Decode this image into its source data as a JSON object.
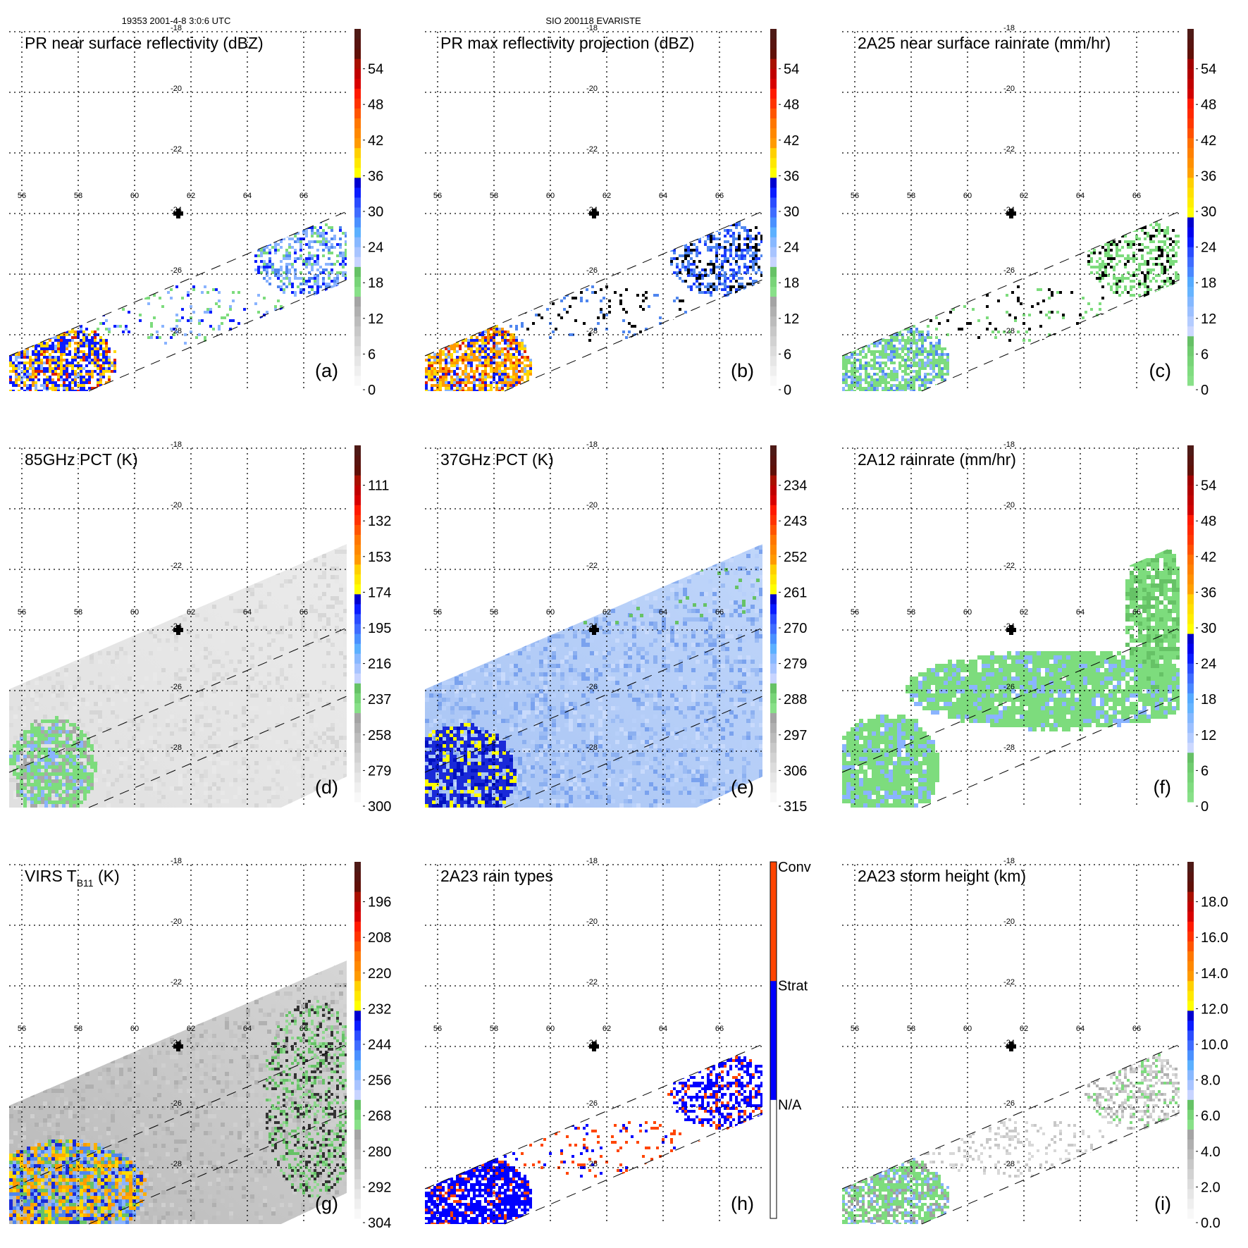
{
  "header": {
    "orbit_time": "19353 2001-4-8 3:0:6 UTC",
    "storm_id": "SIO 200118 EVARISTE"
  },
  "axes": {
    "lon_labels": [
      "56",
      "58",
      "60",
      "62",
      "64",
      "66"
    ],
    "lat_labels": [
      "-18",
      "-20",
      "-22",
      "-24",
      "-26",
      "-28"
    ]
  },
  "colormaps": {
    "reflectivity": [
      "#f8f8f8",
      "#efefef",
      "#e6e6e6",
      "#dcdcdc",
      "#d2d2d2",
      "#c8c8c8",
      "#bcbcbc",
      "#b0b0b0",
      "#a4a4a4",
      "#88e088",
      "#78d478",
      "#66c266",
      "#c8d4ff",
      "#a8c4ff",
      "#88b8ff",
      "#5cb0ff",
      "#4a90ff",
      "#3f6cff",
      "#2a4cff",
      "#0a1cff",
      "#0000d0",
      "#ffff00",
      "#ffe800",
      "#ffd000",
      "#ff9a00",
      "#ff8800",
      "#ff7700",
      "#ff5500",
      "#ff3300",
      "#ff1a00",
      "#d80000",
      "#c00000",
      "#a81000",
      "#601008",
      "#581410",
      "#4e1a16"
    ],
    "rainrate": [
      "#88e088",
      "#80dc80",
      "#78d478",
      "#70cc70",
      "#66c066",
      "#ccd8ff",
      "#b4ccff",
      "#9cc0ff",
      "#84b8ff",
      "#66b4ff",
      "#55aaff",
      "#4a88ff",
      "#3f6cff",
      "#2a4cff",
      "#0a1cff",
      "#0000ee",
      "#0000cc",
      "#ffff00",
      "#ffee00",
      "#ffe000",
      "#ffd000",
      "#ffa000",
      "#ff9000",
      "#ff8000",
      "#ff7000",
      "#ff5000",
      "#ff3800",
      "#ff2800",
      "#ff1a00",
      "#d00000",
      "#c00000",
      "#b00000",
      "#a00000",
      "#601008",
      "#581410",
      "#4e1a16"
    ],
    "raintype": [
      "#ffffff",
      "#0000ff",
      "#ff4500"
    ]
  },
  "panels": [
    {
      "id": "a",
      "title": "PR near surface reflectivity (dBZ)",
      "label": "(a)",
      "colormap": "reflectivity",
      "swath": "pr",
      "colorbar_labels": [
        "54",
        "48",
        "42",
        "36",
        "30",
        "24",
        "18",
        "12",
        "6",
        "0"
      ]
    },
    {
      "id": "b",
      "title": "PR max reflectivity projection (dBZ)",
      "label": "(b)",
      "colormap": "reflectivity",
      "swath": "pr",
      "colorbar_labels": [
        "54",
        "48",
        "42",
        "36",
        "30",
        "24",
        "18",
        "12",
        "6",
        "0"
      ]
    },
    {
      "id": "c",
      "title": "2A25 near surface rainrate (mm/hr)",
      "label": "(c)",
      "colormap": "rainrate",
      "swath": "pr",
      "colorbar_labels": [
        "54",
        "48",
        "42",
        "36",
        "30",
        "24",
        "18",
        "12",
        "6",
        "0"
      ]
    },
    {
      "id": "d",
      "title": "85GHz PCT (K)",
      "label": "(d)",
      "colormap": "reflectivity",
      "swath": "wide",
      "colorbar_labels": [
        "111",
        "132",
        "153",
        "174",
        "195",
        "216",
        "237",
        "258",
        "279",
        "300"
      ]
    },
    {
      "id": "e",
      "title": "37GHz PCT (K)",
      "label": "(e)",
      "colormap": "reflectivity",
      "swath": "wide",
      "colorbar_labels": [
        "234",
        "243",
        "252",
        "261",
        "270",
        "279",
        "288",
        "297",
        "306",
        "315"
      ]
    },
    {
      "id": "f",
      "title": "2A12 rainrate (mm/hr)",
      "label": "(f)",
      "colormap": "rainrate",
      "swath": "wide",
      "colorbar_labels": [
        "54",
        "48",
        "42",
        "36",
        "30",
        "24",
        "18",
        "12",
        "6",
        "0"
      ]
    },
    {
      "id": "g",
      "title": "VIRS T",
      "title_sub": "B11",
      "title_suffix": " (K)",
      "label": "(g)",
      "colormap": "reflectivity",
      "swath": "wide",
      "colorbar_labels": [
        "196",
        "208",
        "220",
        "232",
        "244",
        "256",
        "268",
        "280",
        "292",
        "304"
      ]
    },
    {
      "id": "h",
      "title": "2A23 rain types",
      "label": "(h)",
      "colormap": "raintype",
      "swath": "pr",
      "categorical": true,
      "colorbar_labels": [
        "Conv",
        "Strat",
        "N/A"
      ]
    },
    {
      "id": "i",
      "title": "2A23 storm height (km)",
      "label": "(i)",
      "colormap": "reflectivity",
      "swath": "pr",
      "colorbar_labels": [
        "18.0",
        "16.0",
        "14.0",
        "12.0",
        "10.0",
        "8.0",
        "6.0",
        "4.0",
        "2.0",
        "0.0"
      ]
    }
  ]
}
